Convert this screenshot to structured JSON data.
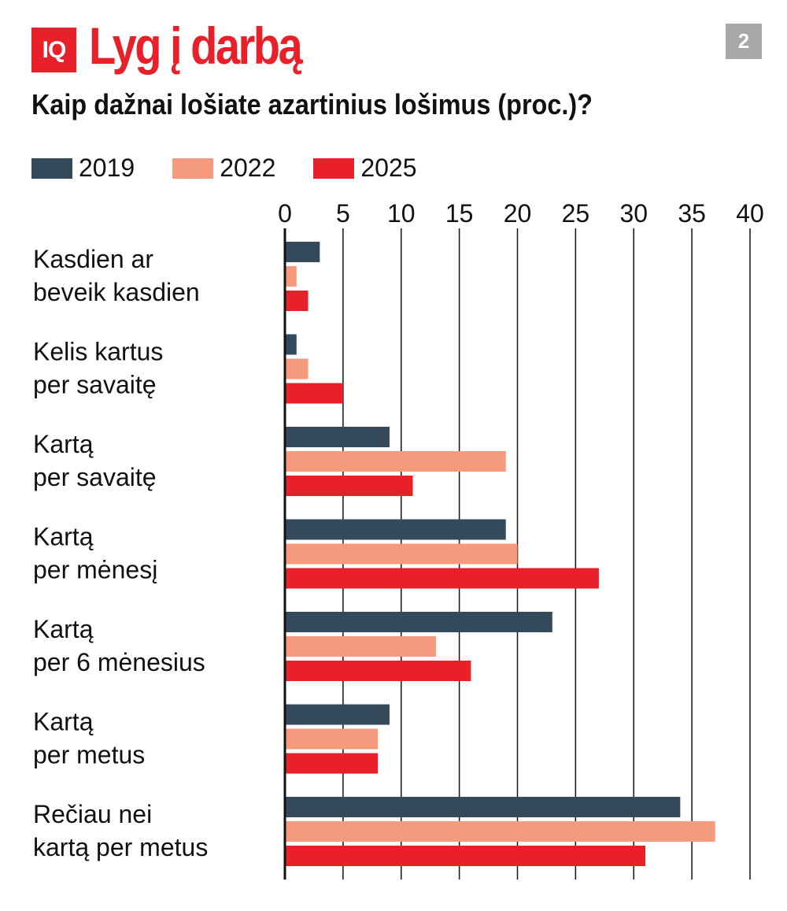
{
  "header": {
    "logo": "IQ",
    "title": "Lyg į darbą",
    "page_number": "2"
  },
  "chart_data": {
    "type": "bar",
    "orientation": "horizontal",
    "title": "Kaip dažnai lošiate azartinius lošimus (proc.)?",
    "categories": [
      [
        "Kasdien ar",
        "beveik kasdien"
      ],
      [
        "Kelis kartus",
        "per savaitę"
      ],
      [
        "Kartą",
        "per savaitę"
      ],
      [
        "Kartą",
        "per mėnesį"
      ],
      [
        "Kartą",
        "per 6 mėnesius"
      ],
      [
        "Kartą",
        "per metus"
      ],
      [
        "Rečiau nei",
        "kartą per metus"
      ]
    ],
    "series": [
      {
        "name": "2019",
        "color": "#344a5a",
        "values": [
          3,
          1,
          9,
          19,
          23,
          9,
          34
        ]
      },
      {
        "name": "2022",
        "color": "#f59a7c",
        "values": [
          1,
          2,
          19,
          20,
          13,
          8,
          37
        ]
      },
      {
        "name": "2025",
        "color": "#e8202a",
        "values": [
          2,
          5,
          11,
          27,
          16,
          8,
          31
        ]
      }
    ],
    "xlim": [
      0,
      40
    ],
    "ticks": [
      "0",
      "5",
      "10",
      "15",
      "20",
      "25",
      "30",
      "35",
      "40"
    ],
    "grid": true,
    "legend": "top-left"
  }
}
